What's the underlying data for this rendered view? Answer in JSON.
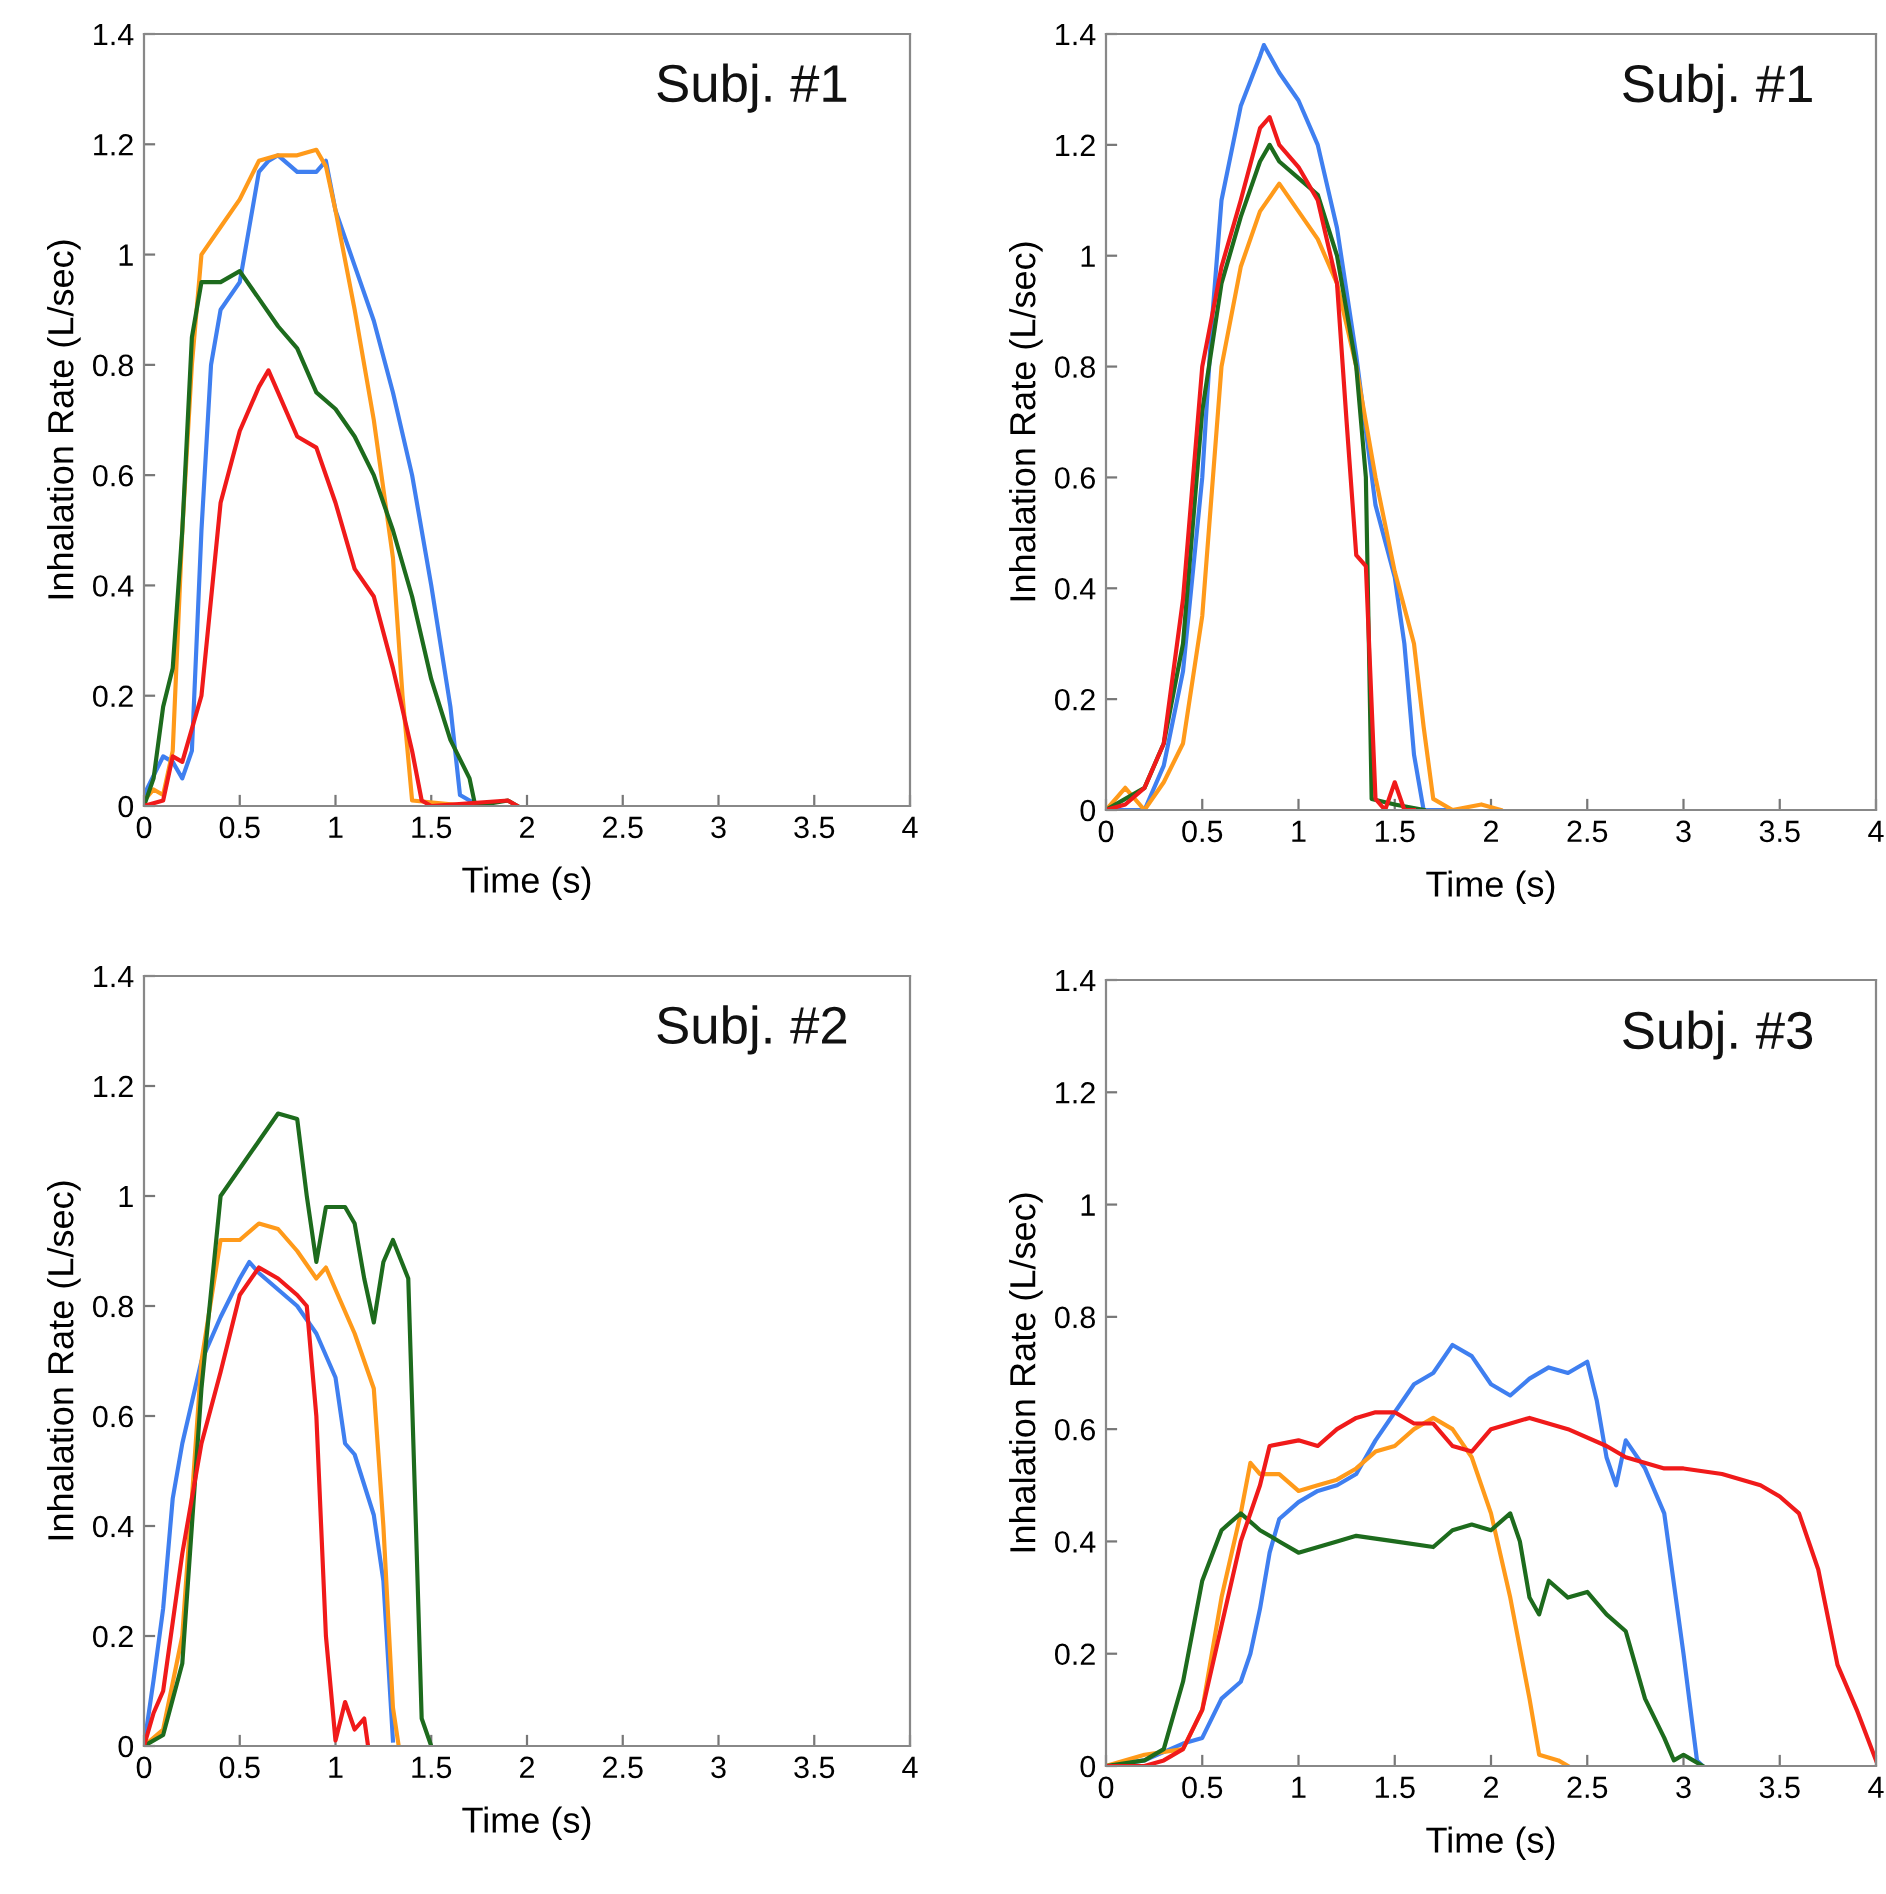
{
  "chart_data": [
    {
      "type": "line",
      "title": "Subj. #1",
      "xlabel": "Time (s)",
      "ylabel": "Inhalation Rate (L/sec)",
      "xlim": [
        0,
        4
      ],
      "ylim": [
        0,
        1.4
      ],
      "xticks": [
        0,
        0.5,
        1,
        1.5,
        2,
        2.5,
        3,
        3.5,
        4
      ],
      "yticks": [
        0,
        0.2,
        0.4,
        0.6,
        0.8,
        1,
        1.2,
        1.4
      ],
      "series": [
        {
          "color": "#3f7ff0",
          "x": [
            0,
            0.1,
            0.15,
            0.2,
            0.25,
            0.3,
            0.35,
            0.4,
            0.5,
            0.55,
            0.6,
            0.65,
            0.7,
            0.8,
            0.9,
            0.95,
            1.0,
            1.1,
            1.2,
            1.3,
            1.4,
            1.5,
            1.6,
            1.65,
            1.75
          ],
          "values": [
            0.02,
            0.09,
            0.08,
            0.05,
            0.1,
            0.5,
            0.8,
            0.9,
            0.95,
            1.05,
            1.15,
            1.17,
            1.18,
            1.15,
            1.15,
            1.17,
            1.08,
            0.98,
            0.88,
            0.75,
            0.6,
            0.4,
            0.18,
            0.02,
            0
          ]
        },
        {
          "color": "#ff9a1a",
          "x": [
            0,
            0.05,
            0.1,
            0.15,
            0.2,
            0.25,
            0.3,
            0.4,
            0.5,
            0.6,
            0.7,
            0.8,
            0.9,
            0.95,
            1.0,
            1.1,
            1.2,
            1.3,
            1.35,
            1.4,
            1.7
          ],
          "values": [
            0.01,
            0.03,
            0.02,
            0.1,
            0.5,
            0.8,
            1.0,
            1.05,
            1.1,
            1.17,
            1.18,
            1.18,
            1.19,
            1.16,
            1.08,
            0.9,
            0.7,
            0.45,
            0.2,
            0.01,
            0
          ]
        },
        {
          "color": "#1d6b1d",
          "x": [
            0,
            0.05,
            0.1,
            0.15,
            0.2,
            0.25,
            0.3,
            0.4,
            0.5,
            0.6,
            0.7,
            0.8,
            0.9,
            1.0,
            1.1,
            1.2,
            1.3,
            1.4,
            1.5,
            1.6,
            1.7,
            1.73,
            1.9,
            1.95
          ],
          "values": [
            0,
            0.05,
            0.18,
            0.25,
            0.5,
            0.85,
            0.95,
            0.95,
            0.97,
            0.92,
            0.87,
            0.83,
            0.75,
            0.72,
            0.67,
            0.6,
            0.5,
            0.38,
            0.23,
            0.12,
            0.05,
            0,
            0.01,
            0
          ]
        },
        {
          "color": "#f01a1a",
          "x": [
            0,
            0.1,
            0.15,
            0.2,
            0.3,
            0.4,
            0.5,
            0.6,
            0.65,
            0.7,
            0.8,
            0.9,
            1.0,
            1.1,
            1.2,
            1.3,
            1.4,
            1.45,
            1.5,
            1.9,
            1.95
          ],
          "values": [
            0,
            0.01,
            0.09,
            0.08,
            0.2,
            0.55,
            0.68,
            0.76,
            0.79,
            0.75,
            0.67,
            0.65,
            0.55,
            0.43,
            0.38,
            0.25,
            0.1,
            0.01,
            0,
            0.01,
            0
          ]
        }
      ]
    },
    {
      "type": "line",
      "title": "Subj. #1",
      "xlabel": "Time (s)",
      "ylabel": "Inhalation Rate (L/sec)",
      "xlim": [
        0,
        4
      ],
      "ylim": [
        0,
        1.4
      ],
      "xticks": [
        0,
        0.5,
        1,
        1.5,
        2,
        2.5,
        3,
        3.5,
        4
      ],
      "yticks": [
        0,
        0.2,
        0.4,
        0.6,
        0.8,
        1,
        1.2,
        1.4
      ],
      "series": [
        {
          "color": "#3f7ff0",
          "x": [
            0,
            0.2,
            0.3,
            0.4,
            0.5,
            0.55,
            0.6,
            0.7,
            0.8,
            0.82,
            0.9,
            1.0,
            1.1,
            1.2,
            1.3,
            1.4,
            1.5,
            1.55,
            1.6,
            1.65,
            1.8
          ],
          "values": [
            0,
            0,
            0.08,
            0.25,
            0.6,
            0.88,
            1.1,
            1.27,
            1.36,
            1.38,
            1.33,
            1.28,
            1.2,
            1.05,
            0.82,
            0.55,
            0.42,
            0.3,
            0.1,
            0,
            0
          ]
        },
        {
          "color": "#ff9a1a",
          "x": [
            0,
            0.1,
            0.2,
            0.3,
            0.4,
            0.5,
            0.6,
            0.7,
            0.8,
            0.9,
            1.0,
            1.1,
            1.2,
            1.3,
            1.4,
            1.5,
            1.6,
            1.65,
            1.7,
            1.8,
            1.95,
            2.05
          ],
          "values": [
            0,
            0.04,
            0,
            0.05,
            0.12,
            0.35,
            0.8,
            0.98,
            1.08,
            1.13,
            1.08,
            1.03,
            0.95,
            0.8,
            0.6,
            0.43,
            0.3,
            0.15,
            0.02,
            0,
            0.01,
            0
          ]
        },
        {
          "color": "#1d6b1d",
          "x": [
            0,
            0.1,
            0.2,
            0.3,
            0.4,
            0.5,
            0.6,
            0.7,
            0.8,
            0.85,
            0.9,
            1.0,
            1.1,
            1.2,
            1.3,
            1.35,
            1.38,
            1.5,
            1.65
          ],
          "values": [
            0,
            0.02,
            0.04,
            0.12,
            0.3,
            0.72,
            0.95,
            1.07,
            1.17,
            1.2,
            1.17,
            1.14,
            1.11,
            1.0,
            0.8,
            0.6,
            0.02,
            0.01,
            0
          ]
        },
        {
          "color": "#f01a1a",
          "x": [
            0,
            0.1,
            0.2,
            0.3,
            0.4,
            0.5,
            0.6,
            0.7,
            0.8,
            0.85,
            0.9,
            1.0,
            1.1,
            1.2,
            1.25,
            1.3,
            1.35,
            1.4,
            1.45,
            1.5,
            1.55,
            1.6
          ],
          "values": [
            0,
            0.01,
            0.04,
            0.12,
            0.38,
            0.8,
            0.98,
            1.1,
            1.23,
            1.25,
            1.2,
            1.16,
            1.1,
            0.95,
            0.7,
            0.46,
            0.44,
            0.02,
            0,
            0.05,
            0,
            0
          ]
        }
      ]
    },
    {
      "type": "line",
      "title": "Subj. #2",
      "xlabel": "Time (s)",
      "ylabel": "Inhalation Rate (L/sec)",
      "xlim": [
        0,
        4
      ],
      "ylim": [
        0,
        1.4
      ],
      "xticks": [
        0,
        0.5,
        1,
        1.5,
        2,
        2.5,
        3,
        3.5,
        4
      ],
      "yticks": [
        0,
        0.2,
        0.4,
        0.6,
        0.8,
        1,
        1.2,
        1.4
      ],
      "series": [
        {
          "color": "#3f7ff0",
          "x": [
            0,
            0.05,
            0.1,
            0.15,
            0.2,
            0.3,
            0.4,
            0.5,
            0.55,
            0.6,
            0.7,
            0.8,
            0.9,
            1.0,
            1.05,
            1.1,
            1.2,
            1.25,
            1.3
          ],
          "values": [
            0,
            0.12,
            0.25,
            0.45,
            0.55,
            0.7,
            0.78,
            0.85,
            0.88,
            0.86,
            0.83,
            0.8,
            0.75,
            0.67,
            0.55,
            0.53,
            0.42,
            0.3,
            0.01
          ]
        },
        {
          "color": "#ff9a1a",
          "x": [
            0,
            0.1,
            0.2,
            0.3,
            0.4,
            0.5,
            0.6,
            0.7,
            0.8,
            0.9,
            0.95,
            1.0,
            1.1,
            1.2,
            1.25,
            1.3,
            1.33
          ],
          "values": [
            0,
            0.03,
            0.2,
            0.7,
            0.92,
            0.92,
            0.95,
            0.94,
            0.9,
            0.85,
            0.87,
            0.83,
            0.75,
            0.65,
            0.4,
            0.07,
            0
          ]
        },
        {
          "color": "#1d6b1d",
          "x": [
            0,
            0.1,
            0.2,
            0.3,
            0.4,
            0.5,
            0.6,
            0.7,
            0.8,
            0.85,
            0.9,
            0.95,
            1.05,
            1.1,
            1.15,
            1.2,
            1.25,
            1.3,
            1.38,
            1.42,
            1.45,
            1.5
          ],
          "values": [
            0,
            0.02,
            0.15,
            0.65,
            1.0,
            1.05,
            1.1,
            1.15,
            1.14,
            1.0,
            0.88,
            0.98,
            0.98,
            0.95,
            0.85,
            0.77,
            0.88,
            0.92,
            0.85,
            0.4,
            0.05,
            0
          ]
        },
        {
          "color": "#f01a1a",
          "x": [
            0,
            0.05,
            0.1,
            0.2,
            0.3,
            0.4,
            0.5,
            0.6,
            0.7,
            0.8,
            0.85,
            0.9,
            0.95,
            1.0,
            1.05,
            1.1,
            1.15,
            1.17
          ],
          "values": [
            0,
            0.06,
            0.1,
            0.35,
            0.55,
            0.68,
            0.82,
            0.87,
            0.85,
            0.82,
            0.8,
            0.6,
            0.2,
            0.01,
            0.08,
            0.03,
            0.05,
            0
          ]
        }
      ]
    },
    {
      "type": "line",
      "title": "Subj. #3",
      "xlabel": "Time (s)",
      "ylabel": "Inhalation Rate (L/sec)",
      "xlim": [
        0,
        4
      ],
      "ylim": [
        0,
        1.4
      ],
      "xticks": [
        0,
        0.5,
        1,
        1.5,
        2,
        2.5,
        3,
        3.5,
        4
      ],
      "yticks": [
        0,
        0.2,
        0.4,
        0.6,
        0.8,
        1,
        1.2,
        1.4
      ],
      "series": [
        {
          "color": "#3f7ff0",
          "x": [
            0,
            0.2,
            0.4,
            0.5,
            0.6,
            0.7,
            0.75,
            0.8,
            0.85,
            0.9,
            1.0,
            1.1,
            1.2,
            1.3,
            1.4,
            1.5,
            1.6,
            1.7,
            1.8,
            1.9,
            2.0,
            2.1,
            2.2,
            2.3,
            2.4,
            2.5,
            2.55,
            2.6,
            2.65,
            2.7,
            2.8,
            2.9,
            3.0,
            3.07,
            3.1
          ],
          "values": [
            0,
            0.01,
            0.04,
            0.05,
            0.12,
            0.15,
            0.2,
            0.28,
            0.38,
            0.44,
            0.47,
            0.49,
            0.5,
            0.52,
            0.58,
            0.63,
            0.68,
            0.7,
            0.75,
            0.73,
            0.68,
            0.66,
            0.69,
            0.71,
            0.7,
            0.72,
            0.65,
            0.55,
            0.5,
            0.58,
            0.53,
            0.45,
            0.2,
            0.01,
            0
          ]
        },
        {
          "color": "#ff9a1a",
          "x": [
            0,
            0.2,
            0.4,
            0.5,
            0.6,
            0.7,
            0.75,
            0.8,
            0.9,
            1.0,
            1.1,
            1.2,
            1.3,
            1.4,
            1.5,
            1.6,
            1.7,
            1.8,
            1.9,
            2.0,
            2.1,
            2.2,
            2.25,
            2.35,
            2.4
          ],
          "values": [
            0,
            0.02,
            0.03,
            0.1,
            0.3,
            0.45,
            0.54,
            0.52,
            0.52,
            0.49,
            0.5,
            0.51,
            0.53,
            0.56,
            0.57,
            0.6,
            0.62,
            0.6,
            0.55,
            0.45,
            0.3,
            0.12,
            0.02,
            0.01,
            0
          ]
        },
        {
          "color": "#1d6b1d",
          "x": [
            0,
            0.2,
            0.3,
            0.4,
            0.5,
            0.6,
            0.7,
            0.8,
            0.9,
            1.0,
            1.2,
            1.3,
            1.5,
            1.7,
            1.8,
            1.9,
            2.0,
            2.1,
            2.15,
            2.2,
            2.25,
            2.3,
            2.4,
            2.5,
            2.6,
            2.7,
            2.8,
            2.9,
            2.95,
            3.0,
            3.05,
            3.1
          ],
          "values": [
            0,
            0.01,
            0.03,
            0.15,
            0.33,
            0.42,
            0.45,
            0.42,
            0.4,
            0.38,
            0.4,
            0.41,
            0.4,
            0.39,
            0.42,
            0.43,
            0.42,
            0.45,
            0.4,
            0.3,
            0.27,
            0.33,
            0.3,
            0.31,
            0.27,
            0.24,
            0.12,
            0.05,
            0.01,
            0.02,
            0.01,
            0
          ]
        },
        {
          "color": "#f01a1a",
          "x": [
            0,
            0.2,
            0.3,
            0.4,
            0.5,
            0.6,
            0.7,
            0.8,
            0.85,
            1.0,
            1.1,
            1.2,
            1.3,
            1.4,
            1.5,
            1.6,
            1.7,
            1.8,
            1.9,
            2.0,
            2.2,
            2.4,
            2.6,
            2.7,
            2.9,
            3.0,
            3.2,
            3.4,
            3.5,
            3.6,
            3.7,
            3.8,
            3.9,
            4.0
          ],
          "values": [
            0,
            0,
            0.01,
            0.03,
            0.1,
            0.25,
            0.4,
            0.5,
            0.57,
            0.58,
            0.57,
            0.6,
            0.62,
            0.63,
            0.63,
            0.61,
            0.61,
            0.57,
            0.56,
            0.6,
            0.62,
            0.6,
            0.57,
            0.55,
            0.53,
            0.53,
            0.52,
            0.5,
            0.48,
            0.45,
            0.35,
            0.18,
            0.1,
            0.01
          ]
        }
      ]
    }
  ]
}
